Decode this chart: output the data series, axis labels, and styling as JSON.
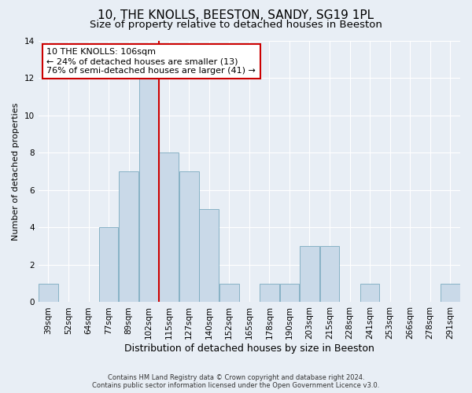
{
  "title": "10, THE KNOLLS, BEESTON, SANDY, SG19 1PL",
  "subtitle": "Size of property relative to detached houses in Beeston",
  "xlabel": "Distribution of detached houses by size in Beeston",
  "ylabel": "Number of detached properties",
  "categories": [
    "39sqm",
    "52sqm",
    "64sqm",
    "77sqm",
    "89sqm",
    "102sqm",
    "115sqm",
    "127sqm",
    "140sqm",
    "152sqm",
    "165sqm",
    "178sqm",
    "190sqm",
    "203sqm",
    "215sqm",
    "228sqm",
    "241sqm",
    "253sqm",
    "266sqm",
    "278sqm",
    "291sqm"
  ],
  "values": [
    1,
    0,
    0,
    4,
    7,
    12,
    8,
    7,
    5,
    1,
    0,
    1,
    1,
    3,
    3,
    0,
    1,
    0,
    0,
    0,
    1
  ],
  "bar_color": "#c9d9e8",
  "bar_edge_color": "#7aaabf",
  "highlight_line_color": "#cc0000",
  "annotation_line1": "10 THE KNOLLS: 106sqm",
  "annotation_line2": "← 24% of detached houses are smaller (13)",
  "annotation_line3": "76% of semi-detached houses are larger (41) →",
  "annotation_box_color": "#ffffff",
  "annotation_box_edge_color": "#cc0000",
  "ylim": [
    0,
    14
  ],
  "yticks": [
    0,
    2,
    4,
    6,
    8,
    10,
    12,
    14
  ],
  "footer_line1": "Contains HM Land Registry data © Crown copyright and database right 2024.",
  "footer_line2": "Contains public sector information licensed under the Open Government Licence v3.0.",
  "background_color": "#e8eef5",
  "plot_background_color": "#e8eef5",
  "grid_color": "#ffffff",
  "title_fontsize": 11,
  "subtitle_fontsize": 9.5,
  "tick_fontsize": 7.5,
  "ylabel_fontsize": 8,
  "xlabel_fontsize": 9,
  "footer_fontsize": 6,
  "annotation_fontsize": 8
}
